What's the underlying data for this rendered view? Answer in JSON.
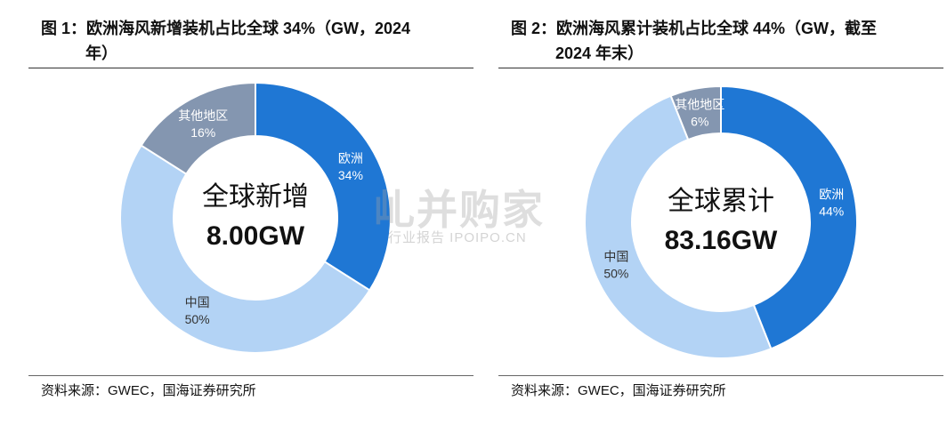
{
  "colors": {
    "europe": "#1f77d4",
    "china": "#b3d3f5",
    "other": "#8496b0",
    "center_text": "#111111"
  },
  "watermark": {
    "main": "乢并购家",
    "sub": "行业报告 IPOIPO.CN"
  },
  "chart_data": [
    {
      "type": "pie",
      "donut": true,
      "title_line1": "图 1：欧洲海风新增装机占比全球 34%（GW，2024",
      "title_line2": "年）",
      "center_line1": "全球新增",
      "center_line2": "8.00GW",
      "source": "资料来源：GWEC，国海证券研究所",
      "slices": [
        {
          "label": "欧洲",
          "value": 34,
          "pct": "34%",
          "color_key": "europe"
        },
        {
          "label": "中国",
          "value": 50,
          "pct": "50%",
          "color_key": "china"
        },
        {
          "label": "其他地区",
          "value": 16,
          "pct": "16%",
          "color_key": "other"
        }
      ]
    },
    {
      "type": "pie",
      "donut": true,
      "title_line1": "图 2：欧洲海风累计装机占比全球 44%（GW，截至",
      "title_line2": "2024 年末）",
      "center_line1": "全球累计",
      "center_line2": "83.16GW",
      "source": "资料来源：GWEC，国海证券研究所",
      "slices": [
        {
          "label": "欧洲",
          "value": 44,
          "pct": "44%",
          "color_key": "europe"
        },
        {
          "label": "中国",
          "value": 50,
          "pct": "50%",
          "color_key": "china"
        },
        {
          "label": "其他地区",
          "value": 6,
          "pct": "6%",
          "color_key": "other"
        }
      ]
    }
  ]
}
